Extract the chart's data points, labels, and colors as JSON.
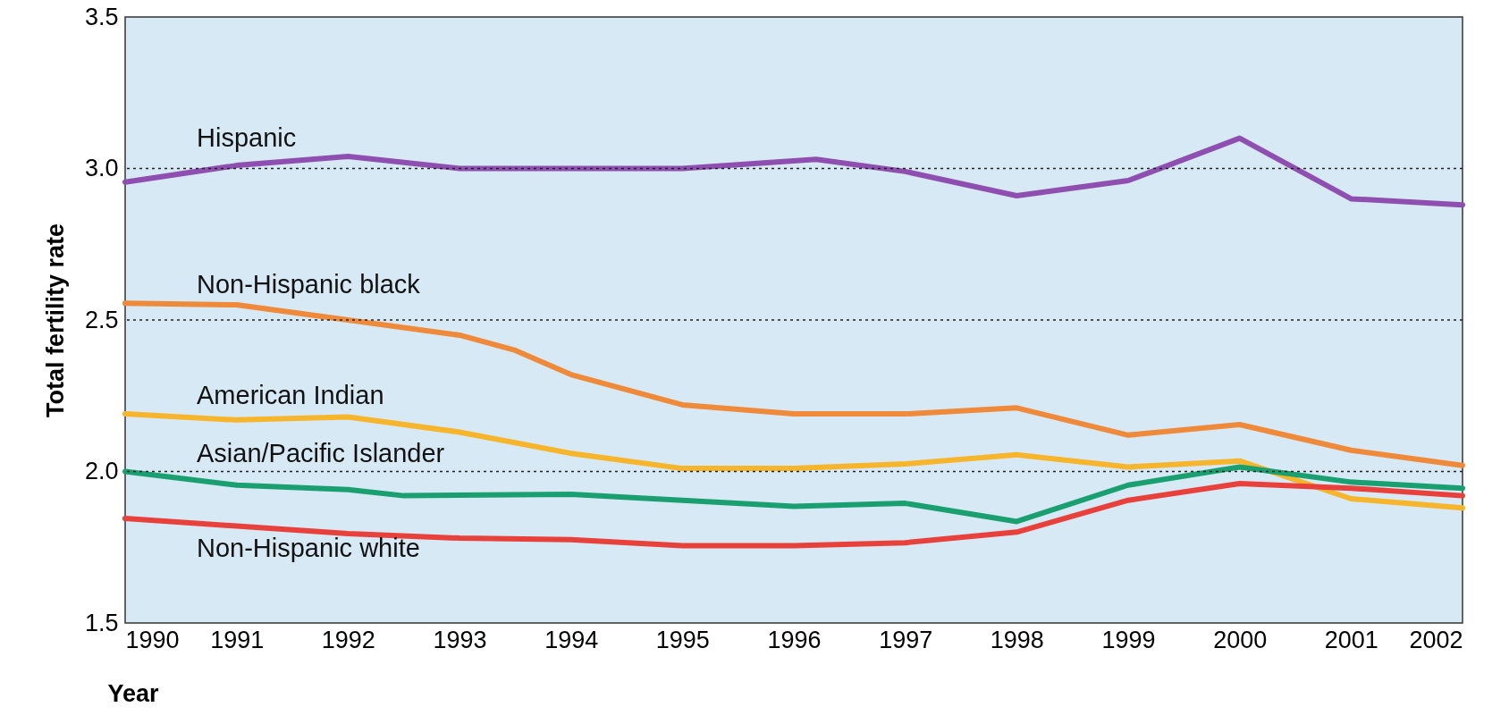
{
  "chart_data": {
    "type": "line",
    "xlabel": "Year",
    "ylabel": "Total fertility rate",
    "xlim": [
      1990,
      2002
    ],
    "xticks": [
      1990,
      1991,
      1992,
      1993,
      1994,
      1995,
      1996,
      1997,
      1998,
      1999,
      2000,
      2001,
      2002
    ],
    "ylim": [
      1.5,
      3.5
    ],
    "yticks": [
      1.5,
      {
        "value": 2,
        "label": "2.0"
      },
      2.5,
      {
        "value": 3,
        "label": "3.0"
      },
      3.5
    ],
    "grid": "y",
    "series": [
      {
        "name": "Hispanic",
        "color": "#8e4fb0",
        "x": [
          1990,
          1991,
          1992,
          1993,
          1994,
          1995,
          1996.2,
          1997,
          1998,
          1999,
          2000,
          2001,
          2002
        ],
        "values": [
          2.955,
          3.01,
          3.04,
          3.0,
          3.0,
          3.0,
          3.03,
          2.99,
          2.91,
          2.96,
          3.1,
          2.9,
          2.88
        ]
      },
      {
        "name": "Non-Hispanic black",
        "color": "#ef8a3a",
        "x": [
          1990,
          1991,
          1992,
          1993,
          1993.5,
          1994,
          1995,
          1996,
          1997,
          1998,
          1999,
          2000,
          2001,
          2002
        ],
        "values": [
          2.555,
          2.55,
          2.5,
          2.45,
          2.4,
          2.32,
          2.22,
          2.19,
          2.19,
          2.21,
          2.12,
          2.155,
          2.07,
          2.02
        ]
      },
      {
        "name": "American Indian",
        "color": "#f7b52c",
        "x": [
          1990,
          1991,
          1992,
          1993,
          1994,
          1995,
          1996,
          1997,
          1998,
          1999,
          2000,
          2001,
          2002
        ],
        "values": [
          2.19,
          2.17,
          2.18,
          2.13,
          2.06,
          2.01,
          2.01,
          2.025,
          2.055,
          2.015,
          2.035,
          1.91,
          1.88
        ]
      },
      {
        "name": "Asian/Pacific Islander",
        "color": "#1aa070",
        "x": [
          1990,
          1991,
          1992,
          1992.5,
          1994,
          1995,
          1996,
          1997,
          1998,
          1999,
          2000,
          2001,
          2002
        ],
        "values": [
          2.0,
          1.955,
          1.94,
          1.92,
          1.925,
          1.905,
          1.885,
          1.895,
          1.835,
          1.955,
          2.015,
          1.965,
          1.945
        ]
      },
      {
        "name": "Non-Hispanic white",
        "color": "#e8413c",
        "x": [
          1990,
          1991,
          1992,
          1993,
          1994,
          1995,
          1996,
          1997,
          1998,
          1999,
          2000,
          2001,
          2002
        ],
        "values": [
          1.845,
          1.82,
          1.795,
          1.78,
          1.775,
          1.755,
          1.755,
          1.765,
          1.8,
          1.905,
          1.96,
          1.945,
          1.92
        ]
      }
    ]
  }
}
